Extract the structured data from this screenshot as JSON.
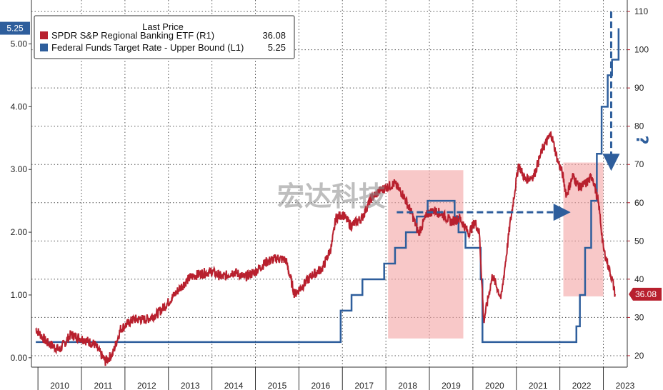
{
  "chart_data": {
    "type": "line",
    "title": "",
    "legend": {
      "title": "Last Price",
      "placement": "top-left",
      "entries": [
        {
          "name": "SPDR S&P Regional Banking ETF  (R1)",
          "value": "36.08",
          "color": "#b8202e"
        },
        {
          "name": "Federal Funds Target Rate - Upper Bound  (L1)",
          "value": "5.25",
          "color": "#2e5e9c"
        }
      ]
    },
    "x_ticks": [
      "2010",
      "2011",
      "2012",
      "2013",
      "2014",
      "2015",
      "2016",
      "2017",
      "2018",
      "2019",
      "2020",
      "2021",
      "2022",
      "2023"
    ],
    "y_left": {
      "range": [
        -0.15,
        5.7
      ],
      "ticks": [
        "0.00",
        "1.00",
        "2.00",
        "3.00",
        "4.00",
        "5.00"
      ],
      "values": [
        0,
        1,
        2,
        3,
        4,
        5
      ]
    },
    "y_right": {
      "range": [
        17,
        113
      ],
      "ticks": [
        "20",
        "30",
        "40",
        "50",
        "60",
        "70",
        "80",
        "90",
        "100",
        "110"
      ],
      "values": [
        20,
        30,
        40,
        50,
        60,
        70,
        80,
        90,
        100,
        110
      ]
    },
    "grid": true,
    "last_value_badges": {
      "left": "5.25",
      "right": "36.08"
    },
    "series": [
      {
        "name": "SPDR S&P Regional Banking ETF  (R1)",
        "axis": "right",
        "color": "#b8202e",
        "x": [
          2009.95,
          2010.2,
          2010.5,
          2010.75,
          2011.0,
          2011.3,
          2011.55,
          2011.72,
          2011.9,
          2012.2,
          2012.5,
          2012.75,
          2013.0,
          2013.25,
          2013.5,
          2013.75,
          2014.0,
          2014.25,
          2014.5,
          2014.75,
          2015.0,
          2015.25,
          2015.5,
          2015.7,
          2015.9,
          2016.1,
          2016.3,
          2016.55,
          2016.75,
          2016.85,
          2017.0,
          2017.2,
          2017.45,
          2017.65,
          2017.85,
          2018.0,
          2018.2,
          2018.4,
          2018.6,
          2018.75,
          2018.95,
          2019.1,
          2019.3,
          2019.5,
          2019.7,
          2019.9,
          2020.05,
          2020.15,
          2020.25,
          2020.45,
          2020.65,
          2020.85,
          2021.05,
          2021.2,
          2021.4,
          2021.6,
          2021.8,
          2021.95,
          2022.05,
          2022.15,
          2022.3,
          2022.45,
          2022.6,
          2022.75,
          2022.9,
          2023.0,
          2023.1,
          2023.2,
          2023.27
        ],
        "y": [
          27,
          23.5,
          21.5,
          25.5,
          24.5,
          23,
          18.5,
          20.5,
          27,
          29.5,
          29.5,
          31,
          34,
          37.5,
          40.5,
          41.5,
          42,
          40.5,
          42,
          40.5,
          42,
          44.5,
          45.5,
          45,
          36,
          38.5,
          41,
          43,
          48.5,
          56,
          57,
          54,
          56,
          61,
          63,
          64,
          65,
          62,
          57,
          52,
          57,
          58,
          57,
          55,
          56,
          52,
          55,
          52,
          29,
          41,
          35,
          54,
          70,
          66,
          67,
          74,
          78,
          71,
          68,
          62,
          67,
          64,
          65,
          67,
          59,
          48,
          44,
          40,
          36.08
        ]
      },
      {
        "name": "Federal Funds Target Rate - Upper Bound  (L1)",
        "axis": "left",
        "color": "#2e5e9c",
        "x": [
          2009.95,
          2015.96,
          2016.96,
          2017.21,
          2017.46,
          2017.96,
          2018.21,
          2018.46,
          2018.71,
          2018.96,
          2019.58,
          2019.67,
          2019.83,
          2020.18,
          2020.22,
          2022.2,
          2022.38,
          2022.46,
          2022.58,
          2022.72,
          2022.85,
          2022.96,
          2023.1,
          2023.2,
          2023.35
        ],
        "y": [
          0.25,
          0.25,
          0.75,
          1.0,
          1.25,
          1.5,
          1.75,
          2.0,
          2.25,
          2.5,
          2.25,
          2.0,
          1.75,
          1.25,
          0.25,
          0.25,
          0.5,
          1.0,
          1.75,
          2.5,
          3.25,
          4.0,
          4.5,
          4.75,
          5.25
        ]
      }
    ],
    "annotations": {
      "shaded_regions": [
        {
          "x0": 2018.05,
          "x1": 2019.78,
          "y0_right": 24.5,
          "y1_right": 68.5
        },
        {
          "x0": 2022.08,
          "x1": 2023.0,
          "y0_right": 35.5,
          "y1_right": 70.5
        }
      ],
      "dashed_arrows": [
        {
          "from": [
            2018.25,
            57.5
          ],
          "to": [
            2022.1,
            57.5
          ],
          "axis": "right",
          "color": "#2e5e9c"
        },
        {
          "from": [
            2023.18,
            110
          ],
          "to": [
            2023.18,
            70
          ],
          "axis": "right",
          "color": "#2e5e9c"
        }
      ],
      "question_mark": "?",
      "watermark": "宏达科技"
    }
  }
}
